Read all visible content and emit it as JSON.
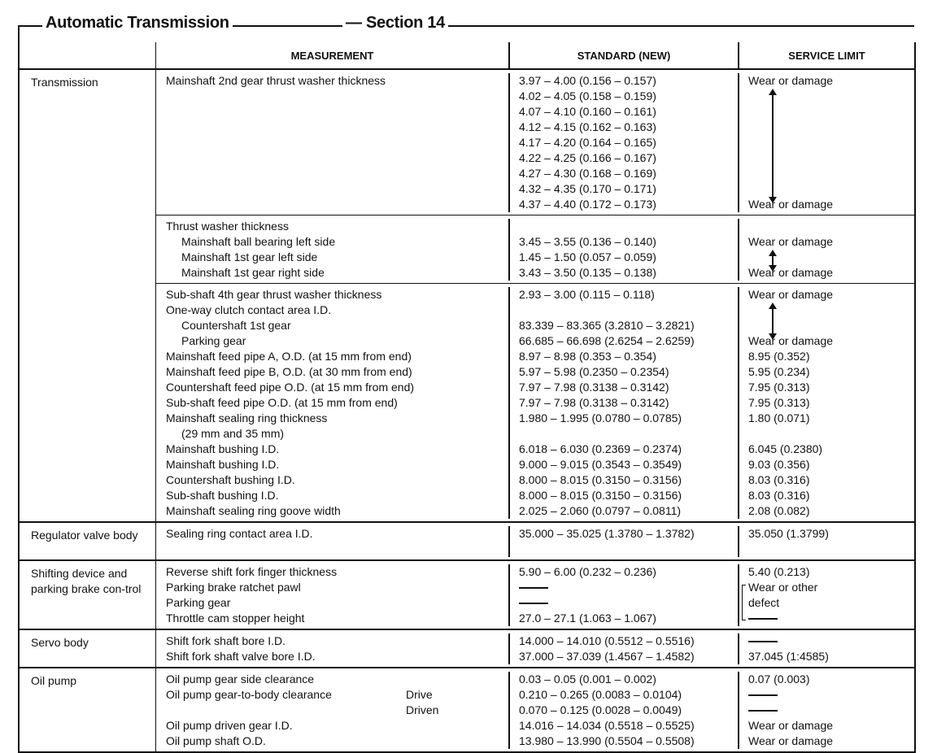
{
  "header": {
    "title": "Automatic Transmission",
    "section": "— Section 14"
  },
  "columns": {
    "measurement": "MEASUREMENT",
    "standard": "STANDARD (NEW)",
    "limit": "SERVICE LIMIT"
  },
  "sections": [
    {
      "name": "Transmission",
      "groups": [
        {
          "arrow": [
            0,
            8
          ],
          "lines": [
            {
              "m": "Mainshaft 2nd gear thrust washer thickness",
              "std": "3.97 – 4.00 (0.156 – 0.157)",
              "lim": "Wear or damage"
            },
            {
              "std": "4.02 – 4.05 (0.158 – 0.159)"
            },
            {
              "std": "4.07 – 4.10 (0.160 – 0.161)"
            },
            {
              "std": "4.12 – 4.15 (0.162 – 0.163)"
            },
            {
              "std": "4.17 – 4.20 (0.164 – 0.165)"
            },
            {
              "std": "4.22 – 4.25 (0.166 – 0.167)"
            },
            {
              "std": "4.27 – 4.30 (0.168 – 0.169)"
            },
            {
              "std": "4.32 – 4.35 (0.170 – 0.171)"
            },
            {
              "std": "4.37 – 4.40 (0.172 – 0.173)",
              "lim": "Wear or damage"
            }
          ]
        },
        {
          "arrow": [
            1,
            3
          ],
          "lines": [
            {
              "m": "Thrust washer thickness"
            },
            {
              "m": "Mainshaft ball bearing left side",
              "indent": true,
              "std": "3.45 – 3.55 (0.136 – 0.140)",
              "lim": "Wear or damage"
            },
            {
              "m": "Mainshaft 1st gear left side",
              "indent": true,
              "std": "1.45 – 1.50 (0.057 – 0.059)"
            },
            {
              "m": "Mainshaft 1st gear right side",
              "indent": true,
              "std": "3.43 – 3.50 (0.135 – 0.138)",
              "lim": "Wear or damage"
            }
          ]
        },
        {
          "arrow": [
            0,
            3
          ],
          "lines": [
            {
              "m": "Sub-shaft 4th gear thrust washer thickness",
              "std": "2.93 – 3.00 (0.115 – 0.118)",
              "lim": "Wear or damage"
            },
            {
              "m": "One-way clutch contact area I.D."
            },
            {
              "m": "Countershaft 1st gear",
              "indent": true,
              "std": "83.339 – 83.365 (3.2810 – 3.2821)"
            },
            {
              "m": "Parking gear",
              "indent": true,
              "std": "66.685 – 66.698 (2.6254 – 2.6259)",
              "lim": "Wear or damage"
            },
            {
              "m": "Mainshaft feed pipe A, O.D. (at 15 mm from end)",
              "std": "8.97 – 8.98 (0.353 – 0.354)",
              "lim": "8.95 (0.352)"
            },
            {
              "m": "Mainshaft feed pipe B, O.D. (at 30 mm from end)",
              "std": "5.97 – 5.98 (0.2350 – 0.2354)",
              "lim": "5.95 (0.234)"
            },
            {
              "m": "Countershaft feed pipe O.D. (at 15 mm from end)",
              "std": "7.97 – 7.98 (0.3138 – 0.3142)",
              "lim": "7.95 (0.313)"
            },
            {
              "m": "Sub-shaft feed pipe O.D. (at 15 mm from end)",
              "std": "7.97 – 7.98 (0.3138 – 0.3142)",
              "lim": "7.95 (0.313)"
            },
            {
              "m": "Mainshaft sealing ring thickness",
              "std": "1.980 – 1.995 (0.0780 – 0.0785)",
              "lim": "1.80 (0.071)"
            },
            {
              "m": "(29 mm and 35 mm)",
              "indent": true
            },
            {
              "m": "Mainshaft bushing I.D.",
              "std": "6.018 – 6.030 (0.2369 – 0.2374)",
              "lim": "6.045 (0.2380)"
            },
            {
              "m": "Mainshaft bushing I.D.",
              "std": "9.000 – 9.015 (0.3543 – 0.3549)",
              "lim": "9.03 (0.356)"
            },
            {
              "m": "Countershaft bushing I.D.",
              "std": "8.000 – 8.015 (0.3150 – 0.3156)",
              "lim": "8.03 (0.316)"
            },
            {
              "m": "Sub-shaft bushing I.D.",
              "std": "8.000 – 8.015 (0.3150 – 0.3156)",
              "lim": "8.03 (0.316)"
            },
            {
              "m": "Mainshaft sealing ring goove width",
              "std": "2.025 – 2.060 (0.0797 – 0.0811)",
              "lim": "2.08 (0.082)"
            }
          ]
        }
      ]
    },
    {
      "name": "Regulator valve body",
      "groups": [
        {
          "lines": [
            {
              "m": "Sealing ring contact area I.D.",
              "std": "35.000 – 35.025 (1.3780 – 1.3782)",
              "lim": "35.050 (1.3799)"
            },
            {}
          ]
        }
      ]
    },
    {
      "name": "Shifting device and parking brake con-trol",
      "groups": [
        {
          "bracket": [
            1,
            2
          ],
          "lines": [
            {
              "m": "Reverse shift fork finger thickness",
              "std": "5.90 – 6.00 (0.232 – 0.236)",
              "lim": "5.40 (0.213)"
            },
            {
              "m": "Parking brake ratchet pawl",
              "std": "—",
              "lim": "Wear or other"
            },
            {
              "m": "Parking gear",
              "std": "—",
              "lim": "defect"
            },
            {
              "m": "Throttle cam stopper height",
              "std": "27.0 – 27.1 (1.063 – 1.067)",
              "lim": "—"
            }
          ]
        }
      ]
    },
    {
      "name": "Servo body",
      "groups": [
        {
          "lines": [
            {
              "m": "Shift fork shaft bore I.D.",
              "std": "14.000 – 14.010 (0.5512 – 0.5516)",
              "lim": "—"
            },
            {
              "m": "Shift fork shaft valve bore I.D.",
              "std": "37.000 – 37.039 (1.4567 – 1.4582)",
              "lim": "37.045 (1:4585)"
            }
          ]
        }
      ]
    },
    {
      "name": "Oil pump",
      "groups": [
        {
          "lines": [
            {
              "m": "Oil pump gear side clearance",
              "std": "0.03 – 0.05 (0.001 – 0.002)",
              "lim": "0.07 (0.003)"
            },
            {
              "m": "Oil pump gear-to-body clearance",
              "extra": "Drive",
              "std": "0.210 – 0.265 (0.0083 – 0.0104)",
              "lim": "—"
            },
            {
              "extra": "Driven",
              "std": "0.070 – 0.125 (0.0028 – 0.0049)",
              "lim": "—"
            },
            {
              "m": "Oil pump driven gear I.D.",
              "std": "14.016 – 14.034 (0.5518 – 0.5525)",
              "lim": "Wear or damage"
            },
            {
              "m": "Oil pump shaft O.D.",
              "std": "13.980 – 13.990 (0.5504 – 0.5508)",
              "lim": "Wear or damage"
            }
          ]
        }
      ]
    }
  ]
}
